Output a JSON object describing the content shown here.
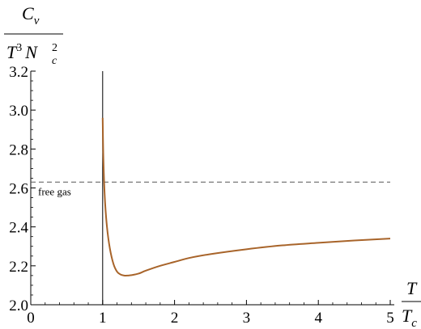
{
  "chart_data": {
    "type": "line",
    "title": "",
    "ylabel": {
      "numerator": "C",
      "numerator_sub": "v",
      "denominator_T": "T",
      "denominator_T_exp": "3",
      "denominator_N": "N",
      "denominator_N_sub": "c",
      "denominator_N_exp": "2"
    },
    "xlabel": {
      "numerator": "T",
      "denominator": "T",
      "denominator_sub": "c"
    },
    "xlim": [
      0,
      5
    ],
    "ylim": [
      2.0,
      3.2
    ],
    "x_ticks": [
      {
        "value": 0,
        "label": "0"
      },
      {
        "value": 1,
        "label": "1"
      },
      {
        "value": 2,
        "label": "2"
      },
      {
        "value": 3,
        "label": "3"
      },
      {
        "value": 4,
        "label": "4"
      },
      {
        "value": 5,
        "label": "5"
      }
    ],
    "y_ticks": [
      {
        "value": 2.0,
        "label": "2.0"
      },
      {
        "value": 2.2,
        "label": "2.2"
      },
      {
        "value": 2.4,
        "label": "2.4"
      },
      {
        "value": 2.6,
        "label": "2.6"
      },
      {
        "value": 2.8,
        "label": "2.8"
      },
      {
        "value": 3.0,
        "label": "3.0"
      },
      {
        "value": 3.2,
        "label": "3.2"
      }
    ],
    "grid": false,
    "series": [
      {
        "color": "#a8642a",
        "x": [
          1.0,
          1.01,
          1.03,
          1.06,
          1.1,
          1.15,
          1.2,
          1.25,
          1.3,
          1.35,
          1.4,
          1.5,
          1.6,
          1.8,
          2.0,
          2.2,
          2.5,
          3.0,
          3.5,
          4.0,
          4.5,
          5.0
        ],
        "y": [
          2.96,
          2.75,
          2.55,
          2.4,
          2.29,
          2.21,
          2.17,
          2.155,
          2.15,
          2.15,
          2.152,
          2.16,
          2.175,
          2.2,
          2.22,
          2.24,
          2.26,
          2.285,
          2.305,
          2.318,
          2.33,
          2.34
        ]
      }
    ],
    "reference_lines": [
      {
        "orientation": "horizontal",
        "value": 2.63,
        "style": "dashed",
        "color": "#555555",
        "label": "free gas"
      },
      {
        "orientation": "vertical",
        "value": 1.0,
        "style": "solid",
        "color": "#000000"
      }
    ]
  }
}
